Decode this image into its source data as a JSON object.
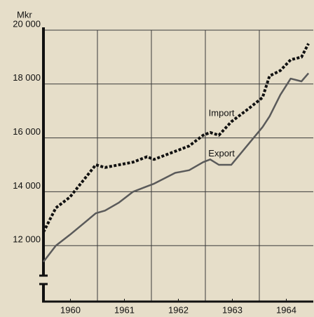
{
  "chart_data": {
    "type": "line",
    "y_label": "Mkr",
    "x": [
      1960,
      1960.23,
      1960.49,
      1960.97,
      1961.14,
      1961.4,
      1961.66,
      1961.92,
      1962.05,
      1962.44,
      1962.7,
      1962.96,
      1963.09,
      1963.25,
      1963.48,
      1963.81,
      1964.06,
      1964.19,
      1964.39,
      1964.58,
      1964.78,
      1964.91
    ],
    "series": [
      {
        "name": "Import",
        "color": "#111111",
        "dash": "dotted",
        "values": [
          12500,
          13400,
          13800,
          15000,
          14900,
          15000,
          15100,
          15300,
          15200,
          15500,
          15700,
          16100,
          16200,
          16100,
          16600,
          17100,
          17500,
          18300,
          18500,
          18900,
          19000,
          19500
        ]
      },
      {
        "name": "Export",
        "color": "#5a5a5a",
        "dash": "solid",
        "values": [
          11400,
          12000,
          12400,
          13200,
          13300,
          13600,
          14000,
          14200,
          14300,
          14700,
          14800,
          15100,
          15200,
          15000,
          15000,
          15800,
          16400,
          16800,
          17600,
          18200,
          18100,
          18400
        ]
      }
    ],
    "xlim": [
      1960,
      1965
    ],
    "xticks": [
      {
        "value": 1960.5,
        "label": "1960"
      },
      {
        "value": 1961.5,
        "label": "1961"
      },
      {
        "value": 1962.5,
        "label": "1962"
      },
      {
        "value": 1963.5,
        "label": "1963"
      },
      {
        "value": 1964.5,
        "label": "1964"
      }
    ],
    "xgrid": [
      1961,
      1962,
      1963,
      1964
    ],
    "ylim": [
      10000,
      20000
    ],
    "yticks": [
      {
        "value": 12000,
        "label": "12 000"
      },
      {
        "value": 14000,
        "label": "14 000"
      },
      {
        "value": 16000,
        "label": "16 000"
      },
      {
        "value": 18000,
        "label": "18 000"
      },
      {
        "value": 20000,
        "label": "20 000"
      }
    ],
    "grid": true,
    "annotations": [
      {
        "text": "Import",
        "x": 1963.3,
        "y": 16900
      },
      {
        "text": "Export",
        "x": 1963.3,
        "y": 15400
      }
    ]
  }
}
